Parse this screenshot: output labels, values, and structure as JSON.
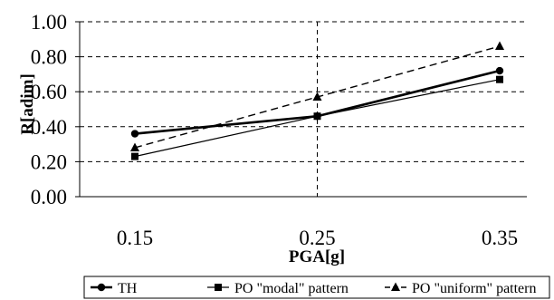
{
  "chart_data": {
    "type": "line",
    "title": "",
    "xlabel": "PGA[g]",
    "ylabel": "R[adim]",
    "x": [
      0.15,
      0.25,
      0.35
    ],
    "x_tick_labels": [
      "0.15",
      "0.25",
      "0.35"
    ],
    "ylim": [
      0,
      1
    ],
    "y_ticks": [
      0,
      0.2,
      0.4,
      0.6,
      0.8,
      1.0
    ],
    "y_tick_labels": [
      "0.00",
      "0.20",
      "0.40",
      "0.60",
      "0.80",
      "1.00"
    ],
    "grid": true,
    "grid_style": "dashed",
    "legend_position": "bottom",
    "series": [
      {
        "name": "TH",
        "values": [
          0.36,
          0.46,
          0.72
        ],
        "marker": "circle",
        "line": "solid-thick",
        "color": "#000000"
      },
      {
        "name": "PO \"modal\" pattern",
        "values": [
          0.23,
          0.46,
          0.67
        ],
        "marker": "square",
        "line": "solid-thin",
        "color": "#000000"
      },
      {
        "name": "PO \"uniform\" pattern",
        "values": [
          0.28,
          0.57,
          0.86
        ],
        "marker": "triangle",
        "line": "dashed",
        "color": "#000000"
      }
    ]
  }
}
